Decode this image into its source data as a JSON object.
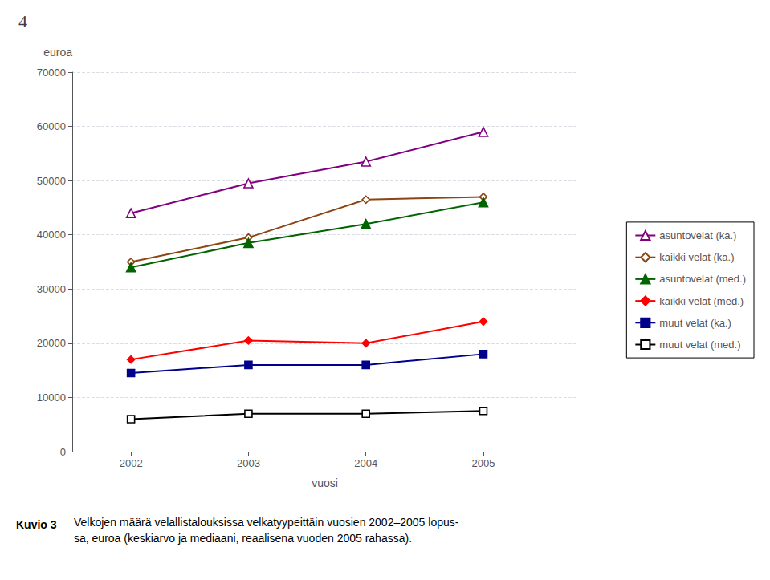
{
  "chart_data": {
    "type": "line",
    "title": "4",
    "xlabel": "vuosi",
    "ylabel": "euroa",
    "annotations": [
      "Kuvio 3",
      "Velkojen määrä velallistalouksissa velkatyypeittäin vuosien 2002–2005 lopus-\nsa, euroa (keskiarvo ja mediaani, reaalisena vuoden 2005 rahassa)."
    ],
    "x": [
      2002,
      2003,
      2004,
      2005
    ],
    "xlim": [
      2001.5,
      2005.8
    ],
    "xticks": [
      2002,
      2003,
      2004,
      2005
    ],
    "ylim": [
      0,
      70000
    ],
    "yticks": [
      0,
      10000,
      20000,
      30000,
      40000,
      50000,
      60000,
      70000
    ],
    "grid": true,
    "legend": "right",
    "series": [
      {
        "name": "asuntovelat (ka.)",
        "color": "#800080",
        "marker": "open-triangle",
        "values": [
          44000,
          49500,
          53500,
          59000
        ]
      },
      {
        "name": "kaikki velat (ka.)",
        "color": "#8B4513",
        "marker": "open-diamond",
        "values": [
          35000,
          39500,
          46500,
          47000
        ]
      },
      {
        "name": "asuntovelat (med.)",
        "color": "#006400",
        "marker": "triangle",
        "values": [
          34000,
          38500,
          42000,
          46000
        ]
      },
      {
        "name": "kaikki velat (med.)",
        "color": "#FF0000",
        "marker": "diamond",
        "values": [
          17000,
          20500,
          20000,
          24000
        ]
      },
      {
        "name": "muut velat (ka.)",
        "color": "#00008B",
        "marker": "square",
        "values": [
          14500,
          16000,
          16000,
          18000
        ]
      },
      {
        "name": "muut velat (med.)",
        "color": "#000000",
        "marker": "open-square",
        "values": [
          6000,
          7000,
          7000,
          7500
        ]
      }
    ]
  }
}
